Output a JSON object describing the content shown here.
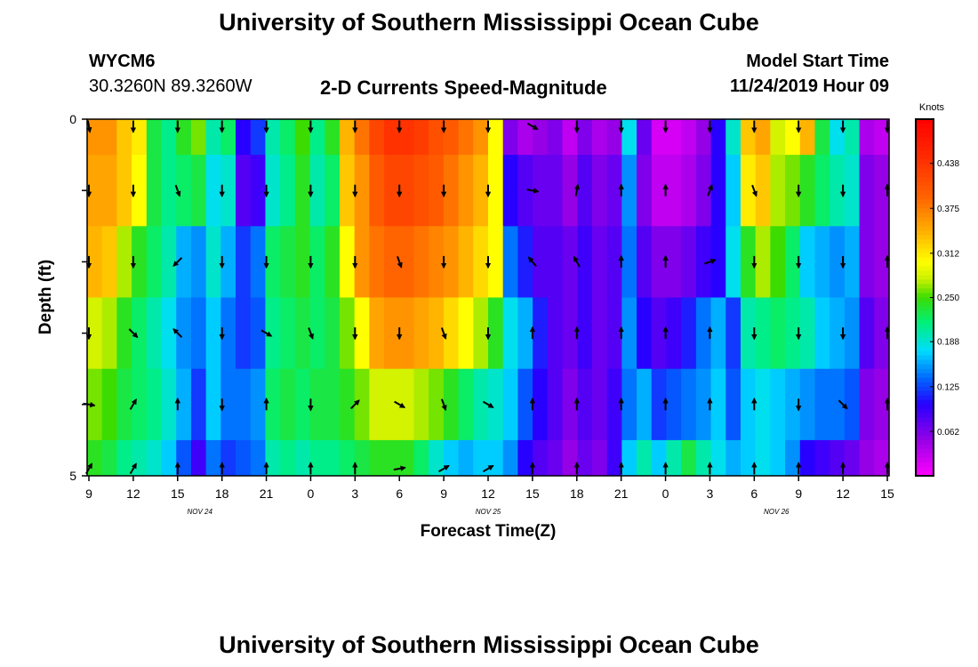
{
  "header": {
    "title_top": "University of Southern Mississippi Ocean Cube",
    "title_bottom": "University of Southern Mississippi Ocean Cube",
    "station": "WYCM6",
    "coords": "30.3260N 89.3260W",
    "subtitle": "2-D Currents Speed-Magnitude",
    "model_label": "Model Start Time",
    "model_time": "11/24/2019 Hour 09"
  },
  "chart_data": {
    "type": "heatmap",
    "xlabel": "Forecast Time(Z)",
    "ylabel": "Depth (ft)",
    "units": "Knots",
    "x_ticks": [
      "9",
      "12",
      "15",
      "18",
      "21",
      "0",
      "3",
      "6",
      "9",
      "12",
      "15",
      "18",
      "21",
      "0",
      "3",
      "6",
      "9",
      "12",
      "15"
    ],
    "date_labels": [
      {
        "text": "NOV 24",
        "at_tick": 2.5
      },
      {
        "text": "NOV 25",
        "at_tick": 9
      },
      {
        "text": "NOV 26",
        "at_tick": 15.5
      }
    ],
    "y_ticks": [
      {
        "value": 0,
        "label": "0"
      },
      {
        "value": 1,
        "label": ""
      },
      {
        "value": 2,
        "label": ""
      },
      {
        "value": 3,
        "label": ""
      },
      {
        "value": 4,
        "label": ""
      },
      {
        "value": 5,
        "label": "5"
      }
    ],
    "ylim": [
      0,
      5
    ],
    "colorbar": {
      "ticks": [
        "0.438",
        "0.375",
        "0.312",
        "0.250",
        "0.188",
        "0.125",
        "0.062"
      ],
      "tick_values": [
        0.438,
        0.375,
        0.312,
        0.25,
        0.188,
        0.125,
        0.062
      ],
      "min": 0.0,
      "max": 0.5
    },
    "rows": [
      {
        "depth_range": [
          0,
          0.5
        ],
        "values": [
          0.36,
          0.36,
          0.33,
          0.31,
          0.23,
          0.21,
          0.24,
          0.26,
          0.2,
          0.22,
          0.1,
          0.12,
          0.2,
          0.22,
          0.25,
          0.21,
          0.24,
          0.34,
          0.38,
          0.42,
          0.44,
          0.44,
          0.43,
          0.41,
          0.4,
          0.38,
          0.36,
          0.3,
          0.06,
          0.04,
          0.05,
          0.06,
          0.03,
          0.06,
          0.04,
          0.05,
          0.18,
          0.07,
          0.02,
          0.02,
          0.03,
          0.05,
          0.1,
          0.19,
          0.33,
          0.35,
          0.28,
          0.3,
          0.34,
          0.23,
          0.18,
          0.2,
          0.04,
          0.03
        ]
      },
      {
        "depth_range": [
          0.5,
          1.5
        ],
        "values": [
          0.35,
          0.35,
          0.33,
          0.3,
          0.23,
          0.21,
          0.22,
          0.23,
          0.18,
          0.19,
          0.08,
          0.09,
          0.19,
          0.21,
          0.24,
          0.2,
          0.22,
          0.33,
          0.36,
          0.4,
          0.42,
          0.42,
          0.41,
          0.4,
          0.38,
          0.36,
          0.34,
          0.3,
          0.1,
          0.08,
          0.07,
          0.07,
          0.05,
          0.08,
          0.06,
          0.07,
          0.15,
          0.06,
          0.03,
          0.03,
          0.04,
          0.06,
          0.1,
          0.17,
          0.31,
          0.33,
          0.27,
          0.26,
          0.24,
          0.22,
          0.2,
          0.19,
          0.06,
          0.05
        ]
      },
      {
        "depth_range": [
          1.5,
          2.5
        ],
        "values": [
          0.34,
          0.33,
          0.27,
          0.24,
          0.22,
          0.2,
          0.16,
          0.15,
          0.19,
          0.16,
          0.12,
          0.14,
          0.22,
          0.23,
          0.24,
          0.22,
          0.24,
          0.3,
          0.36,
          0.38,
          0.39,
          0.39,
          0.38,
          0.37,
          0.36,
          0.34,
          0.32,
          0.3,
          0.14,
          0.11,
          0.08,
          0.08,
          0.07,
          0.09,
          0.07,
          0.08,
          0.14,
          0.08,
          0.06,
          0.06,
          0.07,
          0.09,
          0.1,
          0.18,
          0.24,
          0.27,
          0.25,
          0.22,
          0.17,
          0.16,
          0.15,
          0.16,
          0.06,
          0.05
        ]
      },
      {
        "depth_range": [
          2.5,
          3.5
        ],
        "values": [
          0.28,
          0.27,
          0.24,
          0.22,
          0.2,
          0.18,
          0.15,
          0.14,
          0.17,
          0.14,
          0.12,
          0.13,
          0.21,
          0.22,
          0.23,
          0.22,
          0.23,
          0.26,
          0.3,
          0.35,
          0.36,
          0.36,
          0.35,
          0.34,
          0.32,
          0.3,
          0.27,
          0.24,
          0.18,
          0.16,
          0.11,
          0.08,
          0.07,
          0.09,
          0.07,
          0.08,
          0.15,
          0.1,
          0.08,
          0.09,
          0.11,
          0.14,
          0.16,
          0.12,
          0.2,
          0.21,
          0.22,
          0.21,
          0.2,
          0.17,
          0.16,
          0.15,
          0.08,
          0.06
        ]
      },
      {
        "depth_range": [
          3.5,
          4.5
        ],
        "values": [
          0.26,
          0.25,
          0.23,
          0.22,
          0.21,
          0.19,
          0.16,
          0.12,
          0.17,
          0.14,
          0.14,
          0.15,
          0.22,
          0.23,
          0.22,
          0.23,
          0.23,
          0.24,
          0.26,
          0.28,
          0.28,
          0.28,
          0.27,
          0.26,
          0.24,
          0.22,
          0.2,
          0.19,
          0.17,
          0.13,
          0.1,
          0.08,
          0.06,
          0.08,
          0.07,
          0.09,
          0.14,
          0.16,
          0.12,
          0.13,
          0.14,
          0.15,
          0.17,
          0.13,
          0.17,
          0.18,
          0.17,
          0.16,
          0.15,
          0.14,
          0.14,
          0.13,
          0.06,
          0.05
        ]
      },
      {
        "depth_range": [
          4.5,
          5
        ],
        "values": [
          0.24,
          0.23,
          0.21,
          0.2,
          0.19,
          0.17,
          0.13,
          0.09,
          0.14,
          0.12,
          0.13,
          0.14,
          0.2,
          0.21,
          0.2,
          0.21,
          0.21,
          0.22,
          0.23,
          0.24,
          0.24,
          0.24,
          0.22,
          0.19,
          0.17,
          0.16,
          0.17,
          0.17,
          0.15,
          0.1,
          0.08,
          0.07,
          0.05,
          0.07,
          0.06,
          0.09,
          0.17,
          0.2,
          0.17,
          0.2,
          0.23,
          0.2,
          0.18,
          0.16,
          0.17,
          0.18,
          0.17,
          0.15,
          0.1,
          0.09,
          0.08,
          0.07,
          0.05,
          0.04
        ]
      }
    ],
    "arrow_depths": [
      0.1,
      1,
      2,
      3,
      4,
      4.9
    ],
    "arrow_x_ticks": [
      0,
      1,
      2,
      3,
      4,
      5,
      6,
      7,
      8,
      9,
      10,
      11,
      12,
      13,
      14,
      15,
      16,
      17,
      18
    ],
    "arrow_directions_deg": [
      [
        170,
        180,
        180,
        180,
        180,
        180,
        180,
        180,
        180,
        180,
        120,
        180,
        180,
        180,
        180,
        180,
        180,
        180,
        180
      ],
      [
        180,
        180,
        160,
        180,
        180,
        180,
        180,
        180,
        180,
        180,
        100,
        10,
        0,
        0,
        20,
        160,
        180,
        180,
        0
      ],
      [
        180,
        180,
        225,
        180,
        180,
        180,
        180,
        160,
        180,
        180,
        320,
        330,
        0,
        0,
        70,
        180,
        180,
        180,
        0
      ],
      [
        180,
        135,
        315,
        180,
        120,
        160,
        180,
        180,
        160,
        180,
        0,
        0,
        0,
        0,
        0,
        180,
        180,
        180,
        0
      ],
      [
        100,
        30,
        0,
        180,
        0,
        180,
        45,
        120,
        160,
        120,
        0,
        0,
        0,
        0,
        0,
        0,
        180,
        135,
        0
      ],
      [
        30,
        30,
        0,
        0,
        0,
        0,
        0,
        80,
        60,
        60,
        0,
        0,
        0,
        0,
        0,
        0,
        0,
        0,
        0
      ]
    ]
  }
}
